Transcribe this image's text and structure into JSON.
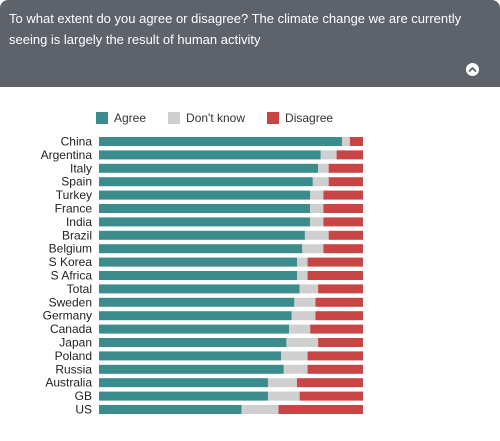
{
  "header": {
    "question": "To what extent do you agree or disagree? The climate change we are currently seeing is largely the result of human activity",
    "collapse_icon": "chevron-up-icon"
  },
  "colors": {
    "header_bg": "#5d626b",
    "agree": "#3a8d8c",
    "dont_know": "#cfcfcf",
    "disagree": "#c94444"
  },
  "chart_data": {
    "type": "bar",
    "orientation": "horizontal",
    "stacked": true,
    "normalized": true,
    "legend_placement": "top",
    "grid": false,
    "categories": [
      "China",
      "Argentina",
      "Italy",
      "Spain",
      "Turkey",
      "France",
      "India",
      "Brazil",
      "Belgium",
      "S Korea",
      "S Africa",
      "Total",
      "Sweden",
      "Germany",
      "Canada",
      "Japan",
      "Poland",
      "Russia",
      "Australia",
      "GB",
      "US"
    ],
    "series": [
      {
        "name": "Agree",
        "values": [
          93,
          84,
          83,
          81,
          80,
          80,
          80,
          78,
          77,
          75,
          75,
          76,
          74,
          73,
          72,
          71,
          69,
          70,
          64,
          64,
          54
        ]
      },
      {
        "name": "Don't know",
        "values": [
          3,
          6,
          4,
          6,
          5,
          5,
          5,
          9,
          8,
          4,
          4,
          7,
          8,
          9,
          8,
          12,
          10,
          9,
          11,
          12,
          14
        ]
      },
      {
        "name": "Disagree",
        "values": [
          5,
          10,
          13,
          13,
          15,
          15,
          15,
          13,
          15,
          21,
          21,
          17,
          18,
          18,
          20,
          17,
          21,
          21,
          25,
          24,
          32
        ]
      }
    ]
  }
}
